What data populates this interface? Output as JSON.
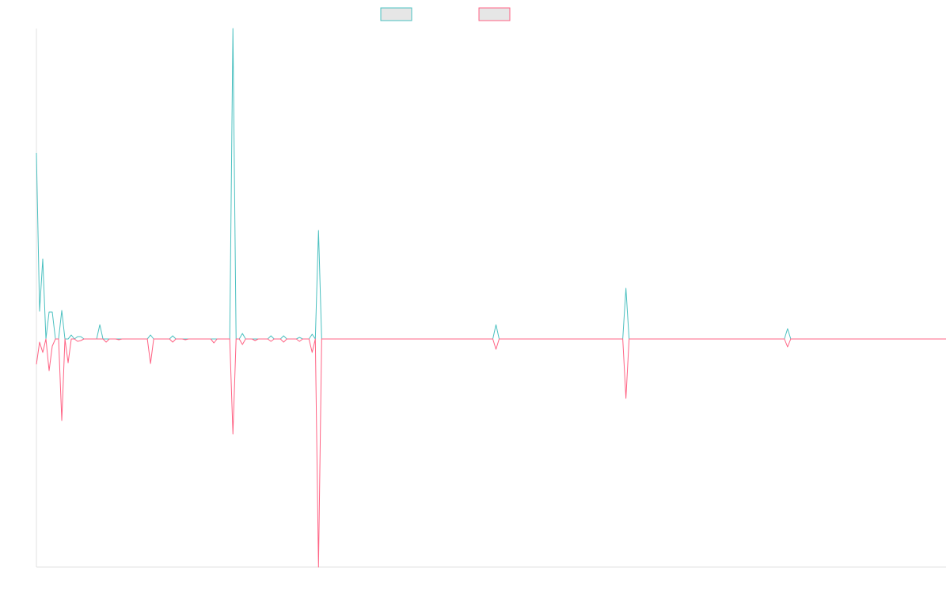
{
  "chart_data": {
    "type": "line",
    "x": [
      0,
      1,
      2,
      3,
      4,
      5,
      6,
      7,
      8,
      9,
      10,
      11,
      12,
      13,
      14,
      15,
      19,
      20,
      21,
      22,
      23,
      25,
      26,
      27,
      35,
      36,
      37,
      42,
      43,
      44,
      46,
      47,
      48,
      55,
      56,
      57,
      61,
      62,
      63,
      64,
      65,
      66,
      68,
      69,
      70,
      73,
      74,
      75,
      77,
      78,
      79,
      82,
      83,
      84,
      86,
      87,
      88,
      89,
      90,
      144,
      145,
      146,
      185,
      186,
      187,
      236,
      237,
      238,
      287
    ],
    "xlim": [
      0,
      287
    ],
    "ylim": [
      -288,
      392
    ],
    "series": [
      {
        "color": "#4bc0c0",
        "values": [
          235,
          35,
          101,
          0,
          34,
          34,
          0,
          0,
          36,
          0,
          0,
          5,
          0,
          3,
          3,
          0,
          0,
          18,
          0,
          0,
          0,
          0,
          0,
          0,
          0,
          5,
          0,
          0,
          4,
          0,
          0,
          0,
          0,
          0,
          0,
          0,
          0,
          392,
          0,
          0,
          7,
          0,
          0,
          0,
          0,
          0,
          4,
          0,
          0,
          4,
          0,
          0,
          2,
          0,
          0,
          6,
          0,
          137,
          0,
          0,
          18,
          0,
          0,
          64,
          0,
          0,
          13,
          0,
          0
        ]
      },
      {
        "color": "#ff6384",
        "values": [
          -32,
          -4,
          -17,
          0,
          -40,
          -9,
          0,
          0,
          -103,
          0,
          -30,
          0,
          0,
          -3,
          -2,
          0,
          0,
          0,
          0,
          -4,
          0,
          0,
          -1,
          0,
          0,
          -31,
          0,
          0,
          -4,
          0,
          0,
          -1,
          0,
          0,
          -5,
          0,
          0,
          -120,
          0,
          0,
          -7,
          0,
          0,
          -2,
          0,
          0,
          -3,
          0,
          0,
          -4,
          0,
          0,
          -3,
          0,
          0,
          -17,
          0,
          -288,
          0,
          0,
          -13,
          0,
          0,
          -75,
          0,
          0,
          -10,
          0,
          0
        ]
      }
    ]
  }
}
